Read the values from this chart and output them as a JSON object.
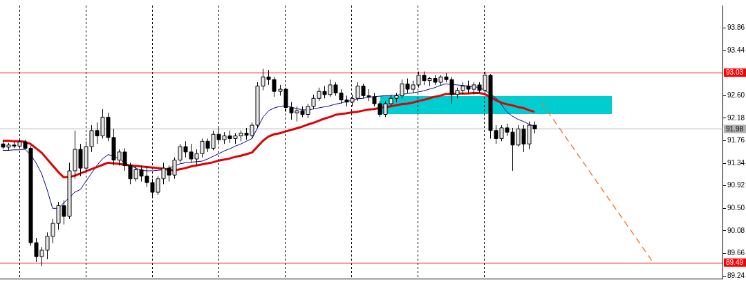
{
  "chart_data": {
    "type": "candlestick",
    "color": "#000000",
    "categories": [
      null,
      null,
      null,
      null,
      null,
      null,
      null,
      null,
      null,
      null,
      null,
      null,
      null,
      null,
      null,
      null,
      null,
      null,
      null,
      null,
      null,
      null,
      null,
      null,
      null,
      null,
      null,
      null,
      null,
      null,
      null,
      null,
      null,
      null,
      null,
      null,
      null,
      null,
      null,
      null,
      null,
      null,
      null,
      null,
      null,
      null,
      null,
      null,
      null,
      null,
      null,
      null,
      null,
      null,
      null,
      null,
      null,
      null,
      null,
      null,
      null,
      null,
      null,
      null,
      null,
      null,
      null,
      null,
      null,
      null,
      null,
      null,
      null,
      null,
      null,
      null,
      null,
      null,
      null,
      null,
      null,
      null,
      null,
      null,
      null,
      null,
      null,
      null,
      null,
      null,
      null,
      null,
      null,
      null,
      null,
      null,
      null
    ],
    "ohlc": [
      [
        91.7,
        91.76,
        91.6,
        91.64
      ],
      [
        91.64,
        91.72,
        91.58,
        91.68
      ],
      [
        91.68,
        91.74,
        91.62,
        91.66
      ],
      [
        91.66,
        91.78,
        91.62,
        91.74
      ],
      [
        91.74,
        91.78,
        91.6,
        91.62
      ],
      [
        91.62,
        91.66,
        89.8,
        89.86
      ],
      [
        89.86,
        89.95,
        89.5,
        89.6
      ],
      [
        89.6,
        89.78,
        89.42,
        89.72
      ],
      [
        89.72,
        90.05,
        89.55,
        89.98
      ],
      [
        89.98,
        90.3,
        89.85,
        90.22
      ],
      [
        90.22,
        90.62,
        90.1,
        90.55
      ],
      [
        90.55,
        90.65,
        90.2,
        90.35
      ],
      [
        90.35,
        91.35,
        90.3,
        91.2
      ],
      [
        91.2,
        91.95,
        91.05,
        91.6
      ],
      [
        91.6,
        91.7,
        91.1,
        91.25
      ],
      [
        91.25,
        91.75,
        91.15,
        91.65
      ],
      [
        91.65,
        92.05,
        91.55,
        91.95
      ],
      [
        91.95,
        92.1,
        91.7,
        91.85
      ],
      [
        91.85,
        92.35,
        91.8,
        92.2
      ],
      [
        92.2,
        92.28,
        91.75,
        91.82
      ],
      [
        91.82,
        91.98,
        91.3,
        91.4
      ],
      [
        91.4,
        91.6,
        91.3,
        91.55
      ],
      [
        91.55,
        91.62,
        91.2,
        91.3
      ],
      [
        91.3,
        91.35,
        90.95,
        91.05
      ],
      [
        91.05,
        91.28,
        91.0,
        91.22
      ],
      [
        91.22,
        91.3,
        91.0,
        91.1
      ],
      [
        91.1,
        91.28,
        90.9,
        90.98
      ],
      [
        90.98,
        91.05,
        90.7,
        90.8
      ],
      [
        90.8,
        91.1,
        90.75,
        91.05
      ],
      [
        91.05,
        91.35,
        90.95,
        91.25
      ],
      [
        91.25,
        91.3,
        91.0,
        91.12
      ],
      [
        91.12,
        91.45,
        91.05,
        91.4
      ],
      [
        91.4,
        91.7,
        91.35,
        91.65
      ],
      [
        91.65,
        91.75,
        91.45,
        91.55
      ],
      [
        91.55,
        91.7,
        91.35,
        91.42
      ],
      [
        91.42,
        91.6,
        91.3,
        91.52
      ],
      [
        91.52,
        91.8,
        91.45,
        91.75
      ],
      [
        91.75,
        91.8,
        91.55,
        91.62
      ],
      [
        91.62,
        91.95,
        91.58,
        91.88
      ],
      [
        91.88,
        92.0,
        91.7,
        91.78
      ],
      [
        91.78,
        91.92,
        91.7,
        91.85
      ],
      [
        91.85,
        91.95,
        91.72,
        91.8
      ],
      [
        91.8,
        91.9,
        91.7,
        91.85
      ],
      [
        91.85,
        91.95,
        91.75,
        91.9
      ],
      [
        91.9,
        92.0,
        91.78,
        91.86
      ],
      [
        91.86,
        92.1,
        91.8,
        92.05
      ],
      [
        92.05,
        92.85,
        92.0,
        92.78
      ],
      [
        92.78,
        93.1,
        92.7,
        92.95
      ],
      [
        92.95,
        93.08,
        92.8,
        92.9
      ],
      [
        92.9,
        92.95,
        92.58,
        92.68
      ],
      [
        92.68,
        92.8,
        92.6,
        92.72
      ],
      [
        92.72,
        92.75,
        92.3,
        92.38
      ],
      [
        92.38,
        92.48,
        92.15,
        92.28
      ],
      [
        92.28,
        92.4,
        92.12,
        92.32
      ],
      [
        92.32,
        92.4,
        92.2,
        92.25
      ],
      [
        92.25,
        92.45,
        92.18,
        92.4
      ],
      [
        92.4,
        92.62,
        92.35,
        92.55
      ],
      [
        92.55,
        92.75,
        92.5,
        92.68
      ],
      [
        92.68,
        92.78,
        92.55,
        92.62
      ],
      [
        92.62,
        92.9,
        92.58,
        92.8
      ],
      [
        92.8,
        92.85,
        92.6,
        92.65
      ],
      [
        92.65,
        92.72,
        92.45,
        92.52
      ],
      [
        92.52,
        92.6,
        92.4,
        92.48
      ],
      [
        92.48,
        92.62,
        92.4,
        92.55
      ],
      [
        92.55,
        92.85,
        92.5,
        92.78
      ],
      [
        92.78,
        92.82,
        92.55,
        92.6
      ],
      [
        92.6,
        92.72,
        92.5,
        92.58
      ],
      [
        92.58,
        92.65,
        92.4,
        92.45
      ],
      [
        92.45,
        92.5,
        92.2,
        92.25
      ],
      [
        92.25,
        92.5,
        92.2,
        92.45
      ],
      [
        92.45,
        92.62,
        92.4,
        92.55
      ],
      [
        92.55,
        92.65,
        92.48,
        92.6
      ],
      [
        92.6,
        92.9,
        92.55,
        92.82
      ],
      [
        92.82,
        92.92,
        92.65,
        92.72
      ],
      [
        92.72,
        92.88,
        92.65,
        92.8
      ],
      [
        92.8,
        93.05,
        92.75,
        92.98
      ],
      [
        92.98,
        93.05,
        92.8,
        92.88
      ],
      [
        92.88,
        92.95,
        92.78,
        92.92
      ],
      [
        92.92,
        92.98,
        92.8,
        92.85
      ],
      [
        92.85,
        92.98,
        92.8,
        92.95
      ],
      [
        92.95,
        93.02,
        92.85,
        92.9
      ],
      [
        92.9,
        92.95,
        92.45,
        92.62
      ],
      [
        92.62,
        92.75,
        92.55,
        92.7
      ],
      [
        92.7,
        92.85,
        92.62,
        92.78
      ],
      [
        92.78,
        92.88,
        92.65,
        92.72
      ],
      [
        92.72,
        92.85,
        92.62,
        92.8
      ],
      [
        92.8,
        92.85,
        92.65,
        92.7
      ],
      [
        92.7,
        93.05,
        92.65,
        92.98
      ],
      [
        92.98,
        93.0,
        91.8,
        91.95
      ],
      [
        91.95,
        92.05,
        91.7,
        91.8
      ],
      [
        91.8,
        92.05,
        91.75,
        92.0
      ],
      [
        92.0,
        92.08,
        91.85,
        91.92
      ],
      [
        91.92,
        92.0,
        91.2,
        91.68
      ],
      [
        91.68,
        92.05,
        91.65,
        91.98
      ],
      [
        91.98,
        92.05,
        91.55,
        91.7
      ],
      [
        91.7,
        92.12,
        91.6,
        92.05
      ],
      [
        92.05,
        92.12,
        91.9,
        91.98
      ]
    ],
    "series": [
      {
        "type": "line",
        "color": "#e00000",
        "values": [
          91.76,
          91.76,
          91.75,
          91.75,
          91.74,
          91.7,
          91.62,
          91.54,
          91.42,
          91.3,
          91.18,
          91.08,
          91.08,
          91.11,
          91.15,
          91.19,
          91.23,
          91.27,
          91.31,
          91.35,
          91.34,
          91.33,
          91.31,
          91.3,
          91.29,
          91.28,
          91.27,
          91.26,
          91.25,
          91.24,
          91.22,
          91.21,
          91.23,
          91.25,
          91.28,
          91.3,
          91.32,
          91.34,
          91.36,
          91.39,
          91.41,
          91.43,
          91.46,
          91.48,
          91.51,
          91.54,
          91.65,
          91.76,
          91.84,
          91.88,
          91.9,
          91.93,
          91.96,
          91.99,
          92.02,
          92.06,
          92.09,
          92.13,
          92.17,
          92.2,
          92.24,
          92.26,
          92.27,
          92.29,
          92.3,
          92.32,
          92.34,
          92.35,
          92.37,
          92.39,
          92.4,
          92.42,
          92.44,
          92.45,
          92.47,
          92.5,
          92.52,
          92.55,
          92.58,
          92.6,
          92.63,
          92.63,
          92.64,
          92.64,
          92.64,
          92.65,
          92.65,
          92.63,
          92.58,
          92.52,
          92.47,
          92.44,
          92.42,
          92.39,
          92.37,
          92.33,
          92.3
        ]
      },
      {
        "type": "line",
        "color": "#00008b",
        "values": [
          91.58,
          91.58,
          91.59,
          91.59,
          91.6,
          91.5,
          91.35,
          91.15,
          90.85,
          90.5,
          90.5,
          90.6,
          90.7,
          90.8,
          90.85,
          91.0,
          91.15,
          91.3,
          91.42,
          91.5,
          91.48,
          91.42,
          91.35,
          91.3,
          91.25,
          91.21,
          91.2,
          91.2,
          91.21,
          91.22,
          91.25,
          91.29,
          91.33,
          91.35,
          91.36,
          91.37,
          91.38,
          91.42,
          91.47,
          91.52,
          91.57,
          91.61,
          91.66,
          91.7,
          91.75,
          91.8,
          92.0,
          92.2,
          92.32,
          92.37,
          92.4,
          92.41,
          92.39,
          92.36,
          92.34,
          92.33,
          92.35,
          92.37,
          92.39,
          92.41,
          92.44,
          92.46,
          92.49,
          92.51,
          92.54,
          92.55,
          92.57,
          92.58,
          92.59,
          92.6,
          92.6,
          92.61,
          92.62,
          92.64,
          92.65,
          92.67,
          92.69,
          92.72,
          92.75,
          92.79,
          92.82,
          92.81,
          92.8,
          92.79,
          92.78,
          92.77,
          92.75,
          92.7,
          92.64,
          92.56,
          92.44,
          92.3,
          92.22,
          92.16,
          92.12,
          92.07,
          92.03
        ]
      }
    ],
    "ylim": [
      89.19,
      94.28
    ],
    "yticks": [
      89.24,
      89.66,
      90.08,
      {
        "value": 90.5,
        "label": "90.50"
      },
      90.92,
      91.34,
      91.76,
      92.18,
      {
        "value": 92.6,
        "label": "92.60"
      },
      93.44,
      93.86
    ],
    "ref_lines": [
      {
        "axis": "y",
        "value": 93.03,
        "label": "93.03",
        "color": "#ff0000"
      },
      {
        "axis": "y",
        "value": 89.49,
        "label": "89.49",
        "color": "#ff0000"
      },
      {
        "axis": "y",
        "value": 91.98,
        "label": "91.98",
        "color": "#b0b0b0"
      }
    ],
    "grid": "x",
    "tick_labels": "y",
    "legend": false
  }
}
